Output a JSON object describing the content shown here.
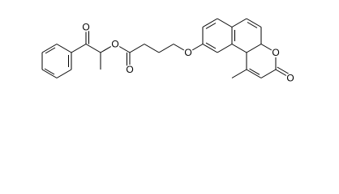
{
  "atoms": [
    {
      "label": "O"
    },
    {
      "label": "O"
    },
    {
      "label": "O"
    },
    {
      "label": "O"
    },
    {
      "label": "O"
    },
    {
      "label": "O"
    }
  ]
}
